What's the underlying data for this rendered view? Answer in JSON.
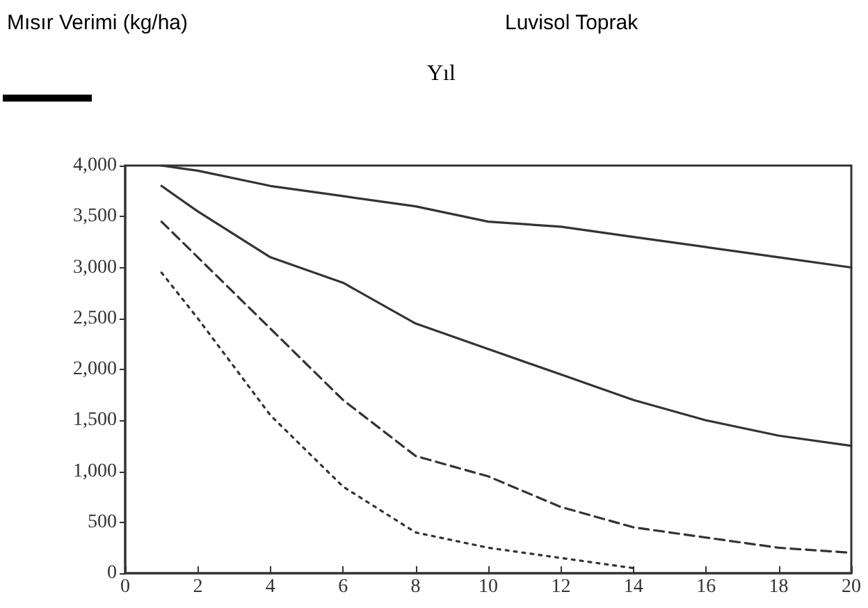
{
  "chart_data": {
    "type": "line",
    "title": "Luvisol Toprak",
    "xlabel": "Yıl",
    "annotations": [
      "Mısır Verimi (kg/ha)"
    ],
    "x": [
      1,
      2,
      4,
      6,
      8,
      10,
      12,
      14,
      16,
      18,
      20
    ],
    "series": [
      {
        "color": "#333333",
        "line_style": "solid",
        "values": [
          4000,
          3950,
          3800,
          3700,
          3600,
          3450,
          3400,
          3300,
          3200,
          3100,
          3000
        ]
      },
      {
        "color": "#333333",
        "line_style": "solid",
        "values": [
          3800,
          3550,
          3100,
          2850,
          2450,
          2200,
          1950,
          1700,
          1500,
          1350,
          1250
        ]
      },
      {
        "color": "#333333",
        "line_style": "dashed",
        "values": [
          3450,
          3100,
          2400,
          1700,
          1150,
          950,
          650,
          450,
          350,
          250,
          200
        ]
      },
      {
        "color": "#333333",
        "line_style": "dotted",
        "values": [
          2950,
          2500,
          1550,
          850,
          400,
          250,
          150,
          50,
          null,
          null,
          null
        ]
      }
    ],
    "xlim": [
      0,
      20
    ],
    "xticks": [
      0,
      2,
      4,
      6,
      8,
      10,
      12,
      14,
      16,
      18,
      20
    ],
    "ylim": [
      0,
      4000
    ],
    "yticks": [
      0,
      500,
      {
        "value": 1000,
        "label": "1,000"
      },
      {
        "value": 1500,
        "label": "1,500"
      },
      {
        "value": 2000,
        "label": "2,000"
      },
      {
        "value": 2500,
        "label": "2,500"
      },
      {
        "value": 3000,
        "label": "3,000"
      },
      {
        "value": 3500,
        "label": "3,500"
      },
      {
        "value": 4000,
        "label": "4,000"
      }
    ],
    "grid": false,
    "marker": "none"
  }
}
